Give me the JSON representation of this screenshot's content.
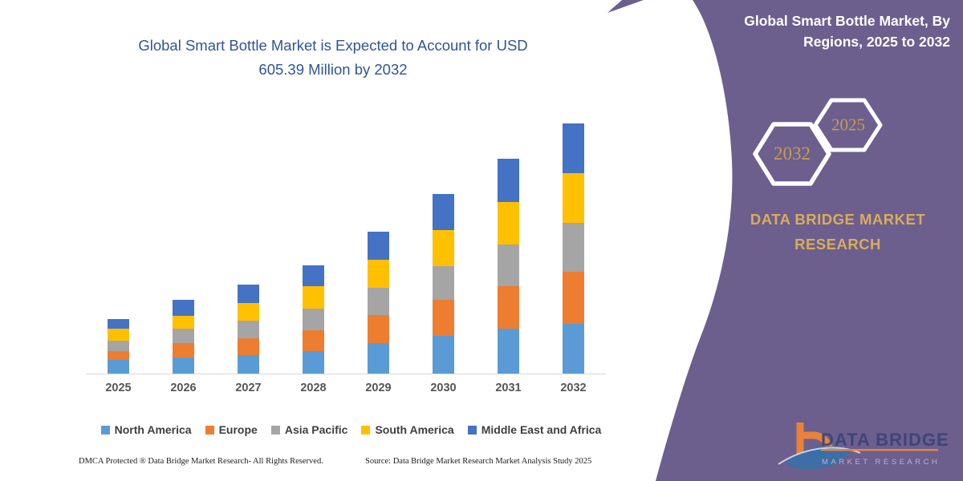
{
  "chart": {
    "title_line1": "Global Smart Bottle Market is Expected to Account for USD",
    "title_line2": "605.39 Million by 2032"
  },
  "chart_data": {
    "type": "bar",
    "stacked": true,
    "title": "Global Smart Bottle Market is Expected to Account for USD 605.39 Million by 2032",
    "unit": "USD Million",
    "categories": [
      "2025",
      "2026",
      "2027",
      "2028",
      "2029",
      "2030",
      "2031",
      "2032"
    ],
    "series": [
      {
        "name": "North America",
        "color": "#5B9BD5",
        "values": [
          32.5,
          38.9,
          44.2,
          55.1,
          73.4,
          90.9,
          108.4,
          120.7
        ]
      },
      {
        "name": "Europe",
        "color": "#ED7D31",
        "values": [
          22.0,
          35.6,
          40.3,
          50.6,
          68.1,
          87.6,
          103.8,
          126.4
        ]
      },
      {
        "name": "Asia Pacific",
        "color": "#A5A5A5",
        "values": [
          24.7,
          33.7,
          44.2,
          52.0,
          66.2,
          81.2,
          100.6,
          118.2
        ]
      },
      {
        "name": "South America",
        "color": "#FFC000",
        "values": [
          29.2,
          32.5,
          42.2,
          54.5,
          68.7,
          87.6,
          102.6,
          120.1
        ]
      },
      {
        "name": "Middle East and Africa",
        "color": "#4472C4",
        "values": [
          24.7,
          38.9,
          45.4,
          50.6,
          67.5,
          87.6,
          103.8,
          120.0
        ]
      }
    ],
    "totals_estimated": [
      133.1,
      179.6,
      216.3,
      262.8,
      343.9,
      434.9,
      519.2,
      605.39
    ],
    "xlabel": "",
    "ylabel": "",
    "ylim": [
      0,
      650
    ],
    "value_axis_visible": false,
    "gridlines": false,
    "legend_position": "bottom",
    "note": "Segment values estimated from bar heights; 2032 total stated as USD 605.39 Million"
  },
  "footer": {
    "dmca": "DMCA Protected ® Data Bridge Market Research- All Rights Reserved.",
    "source": "Source: Data Bridge Market Research Market Analysis Study 2025"
  },
  "panel": {
    "title_line1": "Global Smart Bottle Market, By",
    "title_line2": "Regions, 2025 to 2032",
    "hexagon_back_label": "2032",
    "hexagon_front_label": "2025",
    "brand_line1": "DATA BRIDGE MARKET",
    "brand_line2": "RESEARCH",
    "background_color": "#6C5F8E",
    "accent_gold": "#C99F52"
  },
  "logo": {
    "name": "DATA BRIDGE",
    "tagline": "MARKET RESEARCH"
  }
}
